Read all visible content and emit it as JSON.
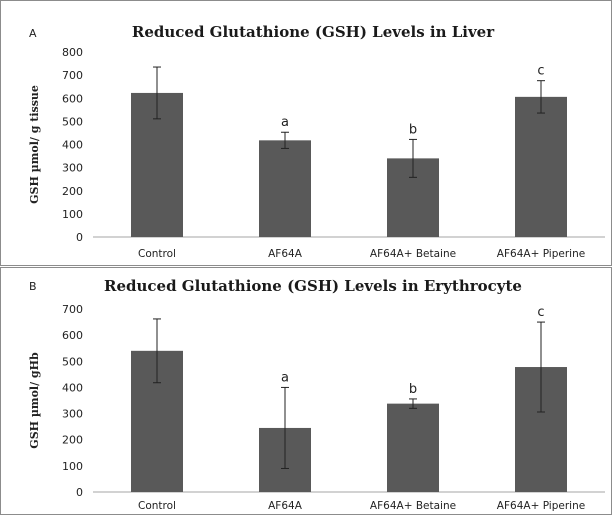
{
  "chart_data": [
    {
      "type": "bar",
      "panel_letter": "A",
      "title": "Reduced Glutathione (GSH) Levels in Liver",
      "ylabel": "GSH µmol/ g tissue",
      "xlabel": "",
      "categories": [
        "Control",
        "AF64A",
        "AF64A+ Betaine",
        "AF64A+ Piperine"
      ],
      "values": [
        623,
        418,
        340,
        606
      ],
      "errors": [
        112,
        35,
        82,
        70
      ],
      "annotations": [
        "",
        "a",
        "b",
        "c"
      ],
      "ylim": [
        0,
        800
      ],
      "yticks": [
        0,
        100,
        200,
        300,
        400,
        500,
        600,
        700,
        800
      ],
      "grid": false,
      "bar_color": "#595959"
    },
    {
      "type": "bar",
      "panel_letter": "B",
      "title": "Reduced Glutathione (GSH) Levels in Erythrocyte",
      "ylabel": "GSH µmol/ gHb",
      "xlabel": "",
      "categories": [
        "Control",
        "AF64A",
        "AF64A+ Betaine",
        "AF64A+ Piperine"
      ],
      "values": [
        540,
        245,
        338,
        478
      ],
      "errors": [
        122,
        155,
        18,
        172
      ],
      "annotations": [
        "",
        "a",
        "b",
        "c"
      ],
      "ylim": [
        0,
        700
      ],
      "yticks": [
        0,
        100,
        200,
        300,
        400,
        500,
        600,
        700
      ],
      "grid": false,
      "bar_color": "#595959"
    }
  ]
}
